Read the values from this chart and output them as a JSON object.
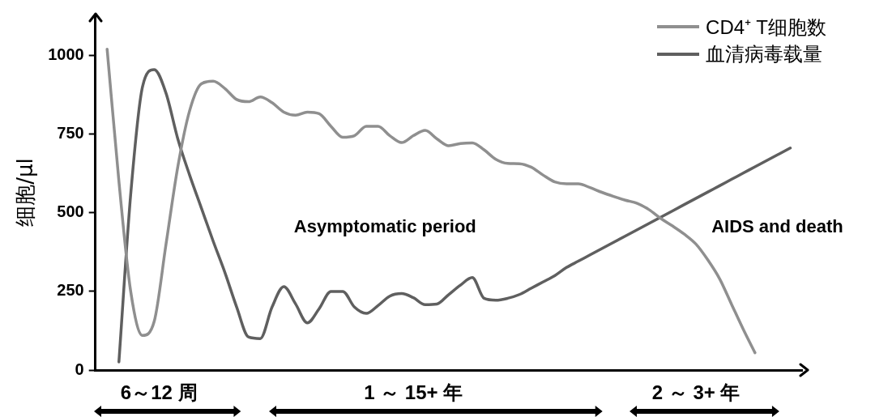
{
  "chart_data": {
    "type": "line",
    "ylabel": "细胞/μl",
    "legend": "top right",
    "tick_labels": "y",
    "marker": "none",
    "line_style": "solid",
    "categories": [
      null,
      null,
      null,
      null,
      null,
      null,
      null,
      null,
      null,
      null,
      null,
      null,
      null,
      null,
      null,
      null,
      null,
      null,
      null,
      null,
      null,
      null,
      null,
      null,
      null,
      null,
      null,
      null,
      null,
      null,
      null,
      null,
      null,
      null,
      null,
      null,
      null,
      null,
      null,
      null,
      null,
      null,
      null,
      null,
      null,
      null,
      null,
      null,
      null,
      null,
      null,
      null,
      null,
      null,
      null,
      null,
      null,
      null,
      null,
      null,
      null
    ],
    "ylim": [
      0,
      1130
    ],
    "yticks": [
      0,
      250,
      500,
      750,
      1000
    ],
    "series": [
      {
        "name": "CD4⁺ T细胞数",
        "color": "#8f8f8f",
        "values": [
          null,
          1020,
          600,
          250,
          110,
          155,
          400,
          646,
          824,
          910,
          918,
          895,
          860,
          853,
          868,
          850,
          820,
          810,
          820,
          815,
          775,
          740,
          745,
          775,
          775,
          745,
          723,
          745,
          762,
          735,
          713,
          720,
          722,
          700,
          670,
          657,
          656,
          645,
          620,
          598,
          592,
          592,
          580,
          565,
          552,
          540,
          530,
          510,
          482,
          458,
          432,
          400,
          350,
          290,
          210,
          130,
          55,
          null,
          null,
          null,
          null
        ]
      },
      {
        "name": "血清病毒载量",
        "color": "#5f5f5f",
        "values": [
          null,
          null,
          26,
          558,
          900,
          955,
          880,
          735,
          620,
          515,
          410,
          310,
          200,
          105,
          100,
          200,
          265,
          210,
          150,
          195,
          250,
          250,
          200,
          180,
          205,
          235,
          243,
          230,
          208,
          210,
          240,
          270,
          294,
          228,
          222,
          228,
          240,
          260,
          280,
          300,
          326,
          346,
          366,
          386,
          406,
          426,
          446,
          466,
          486,
          506,
          526,
          546,
          566,
          586,
          606,
          626,
          646,
          666,
          686,
          706,
          null
        ]
      }
    ],
    "annotations": [
      "Asymptomatic period",
      "AIDS and death",
      "6～12 周",
      "1 ～ 15+ 年",
      "2 ～ 3+ 年"
    ]
  }
}
